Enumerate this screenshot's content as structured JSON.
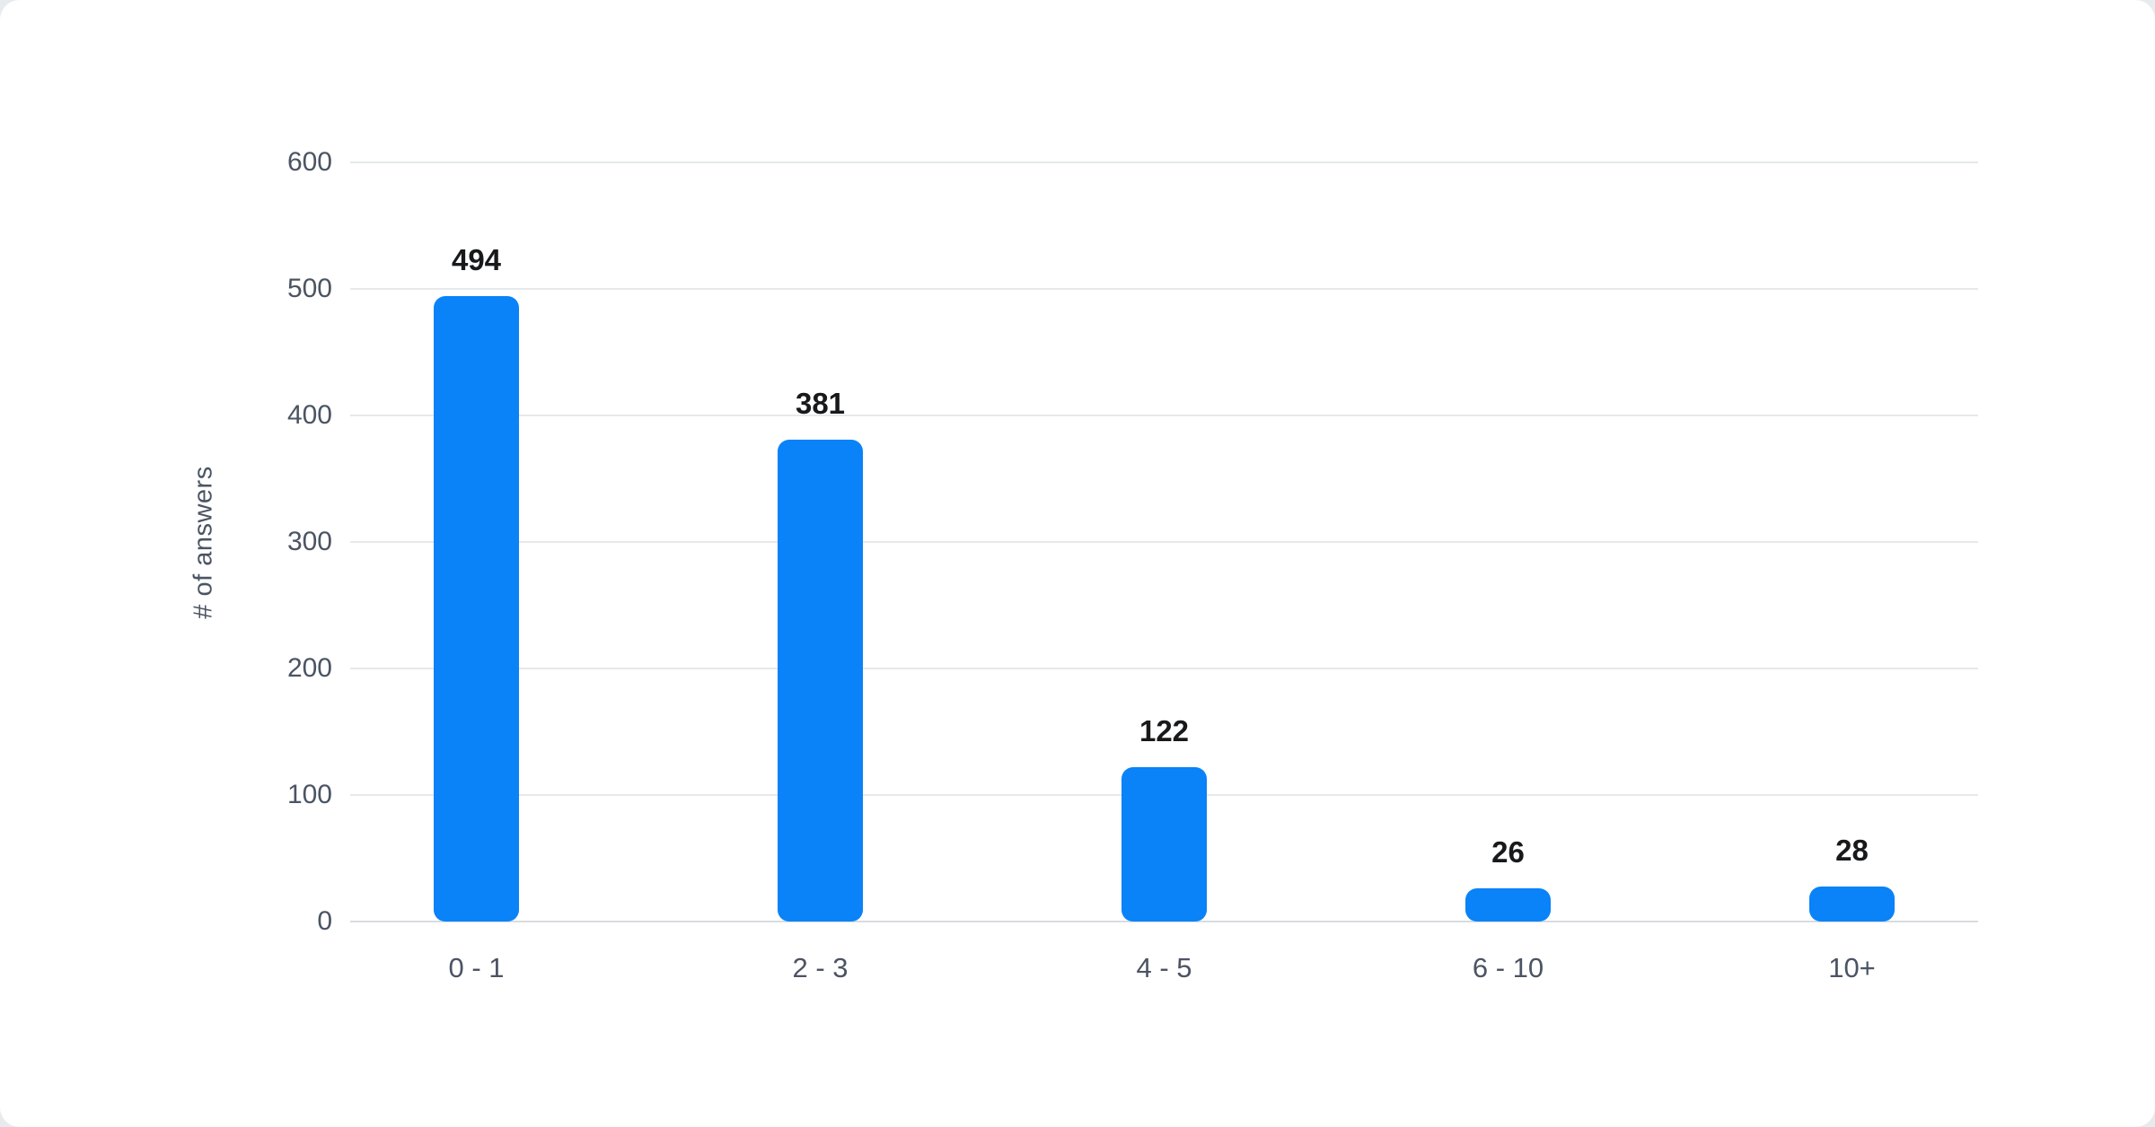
{
  "page": {
    "background_color": "#e8ebed",
    "card_color": "#ffffff"
  },
  "chart_data": {
    "type": "bar",
    "categories": [
      "0 - 1",
      "2 - 3",
      "4 - 5",
      "6 - 10",
      "10+"
    ],
    "values": [
      494,
      381,
      122,
      26,
      28
    ],
    "title": "",
    "xlabel": "",
    "ylabel": "# of answers",
    "ylim": [
      0,
      600
    ],
    "ytick_step": 100,
    "yticks": [
      0,
      100,
      200,
      300,
      400,
      500,
      600
    ],
    "grid": true,
    "legend": "none",
    "value_labels_shown": true,
    "bar_color": "#0a82f8",
    "value_label_color": "#17191b",
    "axis_text_color": "#4b5463",
    "gridline_color": "#e6e9eb",
    "zero_line_color": "#d8dcdf"
  }
}
